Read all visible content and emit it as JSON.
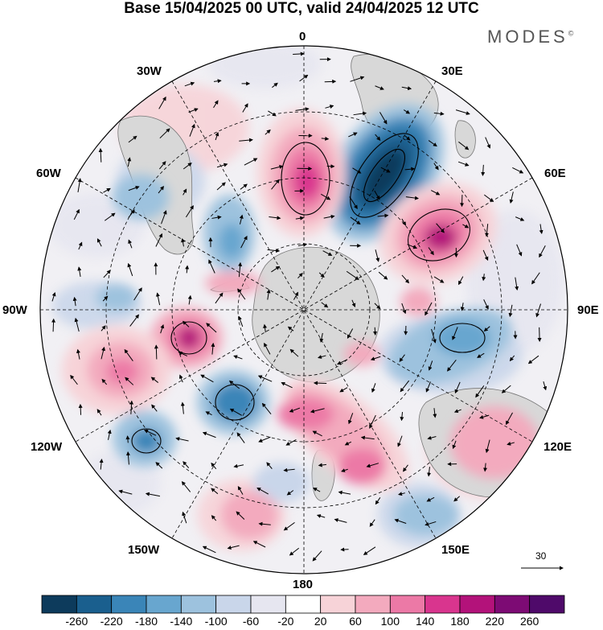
{
  "title": "Base 15/04/2025 00 UTC, valid 24/04/2025 12 UTC",
  "brand": "MODES",
  "brand_mark": "©",
  "longitude_labels": {
    "top": "0",
    "top_left": "30W",
    "top_right": "30E",
    "upper_left": "60W",
    "upper_right": "60E",
    "left": "90W",
    "right": "90E",
    "lower_left": "120W",
    "lower_right": "120E",
    "bottom_left": "150W",
    "bottom_right": "150E",
    "bottom": "180"
  },
  "vector_reference": "30",
  "colorbar": {
    "labels": [
      "-260",
      "-220",
      "-180",
      "-140",
      "-100",
      "-60",
      "-20",
      "20",
      "60",
      "100",
      "140",
      "180",
      "220",
      "260"
    ],
    "colors": [
      "#0d3b5c",
      "#1a5f8e",
      "#3a85b8",
      "#68a6cf",
      "#9dc2de",
      "#c9d6ea",
      "#e6e6f0",
      "#ffffff",
      "#f7d3d8",
      "#f3aabe",
      "#ec79a6",
      "#d9358e",
      "#b3127a",
      "#7d0b74",
      "#4f0a6a"
    ]
  },
  "colors": {
    "land": "#d8d8d8",
    "coast": "#777777"
  }
}
